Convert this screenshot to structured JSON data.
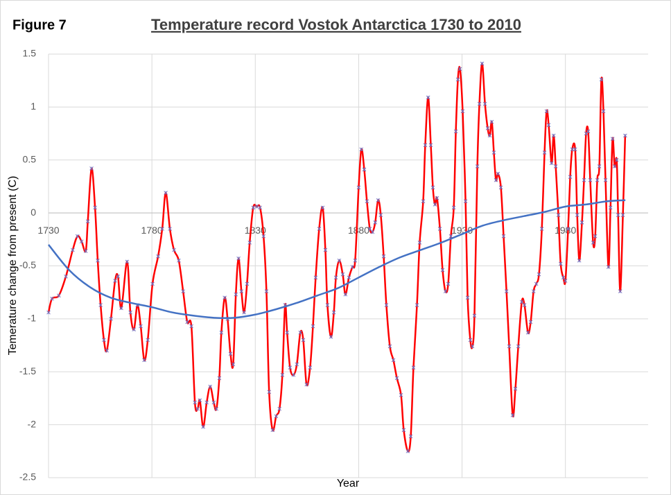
{
  "chart_data": {
    "type": "line",
    "label": "Figure 7",
    "title": "Temperature record Vostok Antarctica 1730 to 2010",
    "xlabel": "Year",
    "ylabel": "Temerature change from present (C)",
    "xlim": [
      1730,
      2020
    ],
    "xticks": [
      1730,
      1780,
      1830,
      1880,
      1930,
      1980
    ],
    "ylim": [
      -2.5,
      1.5
    ],
    "yticks": [
      -2.5,
      -2,
      -1.5,
      -1,
      -0.5,
      0,
      0.5,
      1,
      1.5
    ],
    "grid": true,
    "series": [
      {
        "color": "#ff0000",
        "marker_color": "#7070c0",
        "x": [
          1730,
          1731.7,
          1735,
          1738.4,
          1741.7,
          1744,
          1746,
          1748,
          1749,
          1750.8,
          1752.5,
          1753.8,
          1755.2,
          1756.8,
          1758.2,
          1760.2,
          1762.2,
          1763.6,
          1765.2,
          1768,
          1769.6,
          1771.3,
          1773,
          1774.6,
          1776.3,
          1778,
          1780.3,
          1783,
          1785,
          1786.7,
          1788.7,
          1790.7,
          1793,
          1795.1,
          1797.1,
          1799.1,
          1800.8,
          1802.1,
          1803.2,
          1804.8,
          1806.5,
          1808.2,
          1809.9,
          1811.2,
          1812.6,
          1813.6,
          1815.2,
          1816.6,
          1818,
          1819.3,
          1820.6,
          1821.9,
          1823.3,
          1824.6,
          1826,
          1827.3,
          1829,
          1830.7,
          1832.3,
          1834,
          1835.4,
          1836.7,
          1838.4,
          1840.1,
          1841.7,
          1843.1,
          1844.4,
          1845.4,
          1846.8,
          1848.5,
          1850.1,
          1851.8,
          1853.2,
          1854.8,
          1856.5,
          1857.9,
          1859.2,
          1860.9,
          1862.6,
          1863.9,
          1864.9,
          1866.6,
          1868,
          1869,
          1870.6,
          1872.3,
          1873.6,
          1875.3,
          1877,
          1878.3,
          1880,
          1881.3,
          1882.7,
          1884,
          1885.4,
          1886.7,
          1888,
          1889.4,
          1890.7,
          1892.1,
          1893.4,
          1895.1,
          1896.8,
          1898.5,
          1900.5,
          1901.8,
          1903.8,
          1905.2,
          1906.5,
          1908.2,
          1909.5,
          1911.2,
          1912.2,
          1913.6,
          1914.9,
          1915.9,
          1916.9,
          1917.9,
          1919.3,
          1920.6,
          1922,
          1923.3,
          1924.6,
          1926,
          1927,
          1928,
          1929,
          1930.3,
          1931.7,
          1932.7,
          1934,
          1935,
          1936,
          1937.4,
          1938.4,
          1939.7,
          1941.1,
          1942.4,
          1943.4,
          1944.4,
          1945.4,
          1946.4,
          1947.4,
          1948.8,
          1950.1,
          1951.5,
          1952.8,
          1954.5,
          1955.8,
          1957.2,
          1958.9,
          1960.2,
          1961.9,
          1963.2,
          1964.6,
          1965.9,
          1967.2,
          1968.6,
          1969.9,
          1970.9,
          1971.9,
          1973.3,
          1974.3,
          1975.3,
          1976.6,
          1977.7,
          1979,
          1980,
          1981.3,
          1982.3,
          1983.3,
          1984.7,
          1985.7,
          1986.7,
          1988,
          1989,
          1990,
          1991,
          1992,
          1993.4,
          1994.4,
          1995.4,
          1996.4,
          1997.4,
          1998.4,
          1999.4,
          2000.8,
          2001.8,
          2002.8,
          2003.8,
          2004.8,
          2005.5,
          2006.5,
          2007.8,
          2008.9
        ],
        "values": [
          -0.94,
          -0.81,
          -0.78,
          -0.6,
          -0.35,
          -0.22,
          -0.27,
          -0.36,
          -0.08,
          0.42,
          0.05,
          -0.45,
          -0.87,
          -1.2,
          -1.3,
          -1.0,
          -0.64,
          -0.6,
          -0.9,
          -0.46,
          -0.94,
          -1.1,
          -0.87,
          -1.07,
          -1.39,
          -1.2,
          -0.67,
          -0.41,
          -0.15,
          0.19,
          -0.15,
          -0.35,
          -0.45,
          -0.74,
          -1.03,
          -1.07,
          -1.79,
          -1.85,
          -1.77,
          -2.02,
          -1.79,
          -1.64,
          -1.79,
          -1.85,
          -1.56,
          -1.13,
          -0.8,
          -1.0,
          -1.33,
          -1.43,
          -0.77,
          -0.43,
          -0.74,
          -0.94,
          -0.67,
          -0.28,
          0.05,
          0.06,
          0.05,
          -0.22,
          -0.74,
          -1.69,
          -2.05,
          -1.92,
          -1.85,
          -1.53,
          -0.87,
          -1.13,
          -1.46,
          -1.53,
          -1.43,
          -1.13,
          -1.2,
          -1.62,
          -1.46,
          -1.07,
          -0.61,
          -0.15,
          0.05,
          -0.35,
          -0.87,
          -1.17,
          -0.94,
          -0.61,
          -0.45,
          -0.58,
          -0.77,
          -0.61,
          -0.51,
          -0.45,
          0.24,
          0.6,
          0.41,
          0.11,
          -0.15,
          -0.18,
          -0.09,
          0.12,
          -0.02,
          -0.41,
          -0.87,
          -1.26,
          -1.39,
          -1.56,
          -1.72,
          -2.05,
          -2.25,
          -2.11,
          -1.46,
          -0.87,
          -0.28,
          0.11,
          0.64,
          1.09,
          0.64,
          0.24,
          0.08,
          0.14,
          -0.15,
          -0.54,
          -0.74,
          -0.67,
          -0.22,
          0.05,
          0.77,
          1.26,
          1.36,
          0.96,
          0.11,
          -0.8,
          -1.2,
          -1.26,
          -0.97,
          0.44,
          1.03,
          1.41,
          1.03,
          0.8,
          0.73,
          0.86,
          0.57,
          0.31,
          0.37,
          0.24,
          -0.22,
          -0.74,
          -1.26,
          -1.91,
          -1.66,
          -1.26,
          -0.84,
          -0.87,
          -1.13,
          -1.03,
          -0.74,
          -0.67,
          -0.58,
          -0.15,
          0.57,
          0.96,
          0.83,
          0.47,
          0.73,
          0.44,
          -0.02,
          -0.48,
          -0.61,
          -0.64,
          -0.15,
          0.34,
          0.6,
          0.6,
          -0.02,
          -0.45,
          -0.09,
          0.31,
          0.75,
          0.77,
          0.31,
          -0.28,
          -0.22,
          0.31,
          0.44,
          1.26,
          0.96,
          0.31,
          -0.51,
          0.05,
          0.7,
          0.44,
          0.5,
          -0.02,
          -0.74,
          -0.02,
          0.73
        ]
      },
      {
        "color": "#4472c4",
        "x": [
          1730,
          1740,
          1750,
          1760,
          1770,
          1780,
          1790,
          1800,
          1810,
          1820,
          1830,
          1840,
          1850,
          1860,
          1870,
          1880,
          1890,
          1900,
          1910,
          1920,
          1930,
          1940,
          1950,
          1960,
          1970,
          1980,
          1990,
          2000,
          2009
        ],
        "values": [
          -0.3,
          -0.54,
          -0.7,
          -0.8,
          -0.85,
          -0.89,
          -0.94,
          -0.97,
          -0.99,
          -0.99,
          -0.96,
          -0.91,
          -0.85,
          -0.78,
          -0.71,
          -0.61,
          -0.51,
          -0.42,
          -0.35,
          -0.28,
          -0.2,
          -0.12,
          -0.07,
          -0.03,
          0.01,
          0.06,
          0.08,
          0.11,
          0.12
        ]
      }
    ]
  }
}
